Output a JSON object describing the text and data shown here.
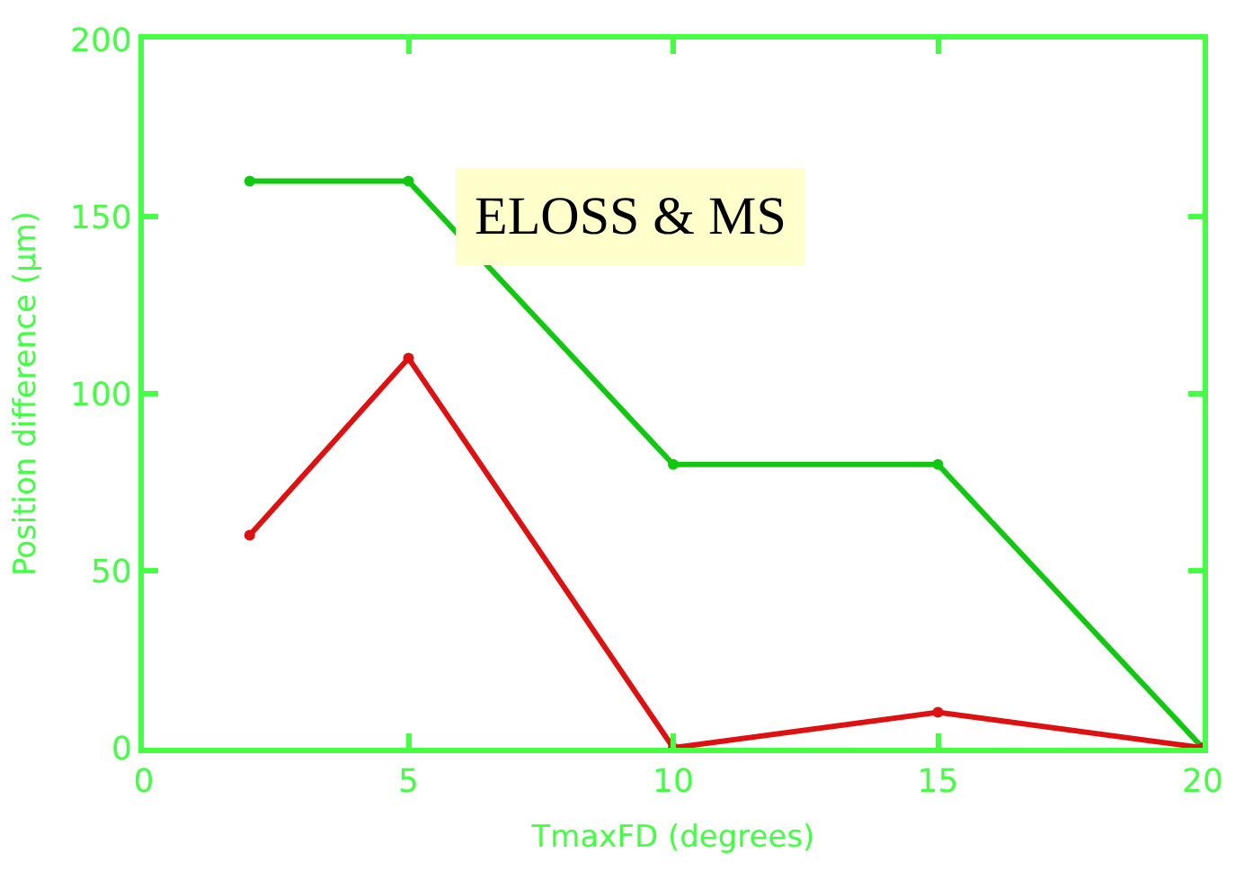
{
  "chart_data": {
    "type": "line",
    "xlabel": "TmaxFD (degrees)",
    "ylabel": "Position difference (μm)",
    "x": [
      2,
      5,
      10,
      15,
      20
    ],
    "series": [
      {
        "color": "#11c811",
        "values": [
          160,
          160,
          80,
          80,
          0
        ]
      },
      {
        "color": "#dd1111",
        "values": [
          60,
          110,
          0,
          10,
          0
        ]
      }
    ],
    "xlim": [
      0,
      20
    ],
    "ylim": [
      0,
      200
    ],
    "xticks": [
      0,
      5,
      10,
      15,
      20
    ],
    "yticks": [
      0,
      50,
      100,
      150,
      200
    ],
    "legend": false,
    "marker": "circle",
    "line_style": "solid",
    "annotations": [
      "ELOSS & MS"
    ]
  }
}
